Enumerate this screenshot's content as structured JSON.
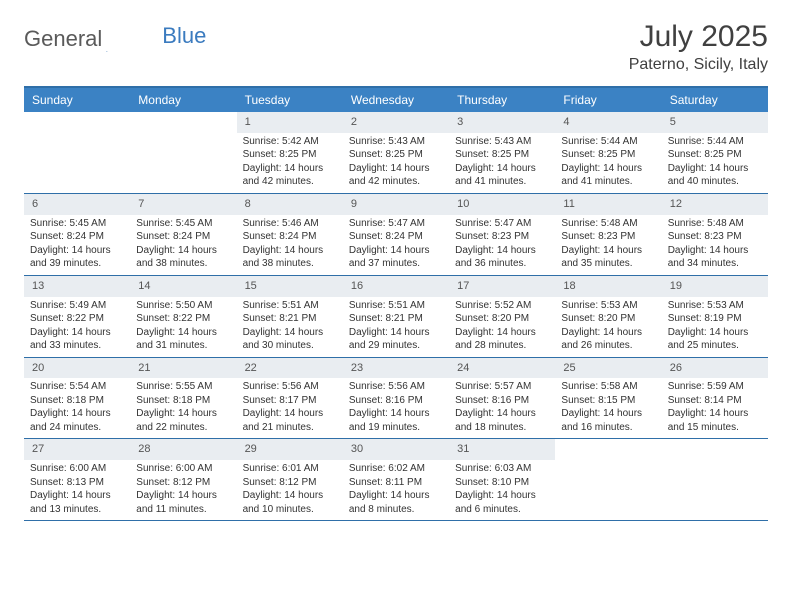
{
  "brand": {
    "part1": "General",
    "part2": "Blue"
  },
  "title": "July 2025",
  "location": "Paterno, Sicily, Italy",
  "colors": {
    "header_bg": "#3b82c4",
    "header_text": "#ffffff",
    "border": "#2f6fa8",
    "daynum_bg": "#e9edf1",
    "text": "#333333",
    "page_bg": "#ffffff"
  },
  "days_of_week": [
    "Sunday",
    "Monday",
    "Tuesday",
    "Wednesday",
    "Thursday",
    "Friday",
    "Saturday"
  ],
  "weeks": [
    [
      null,
      null,
      {
        "n": "1",
        "sr": "Sunrise: 5:42 AM",
        "ss": "Sunset: 8:25 PM",
        "dl": "Daylight: 14 hours and 42 minutes."
      },
      {
        "n": "2",
        "sr": "Sunrise: 5:43 AM",
        "ss": "Sunset: 8:25 PM",
        "dl": "Daylight: 14 hours and 42 minutes."
      },
      {
        "n": "3",
        "sr": "Sunrise: 5:43 AM",
        "ss": "Sunset: 8:25 PM",
        "dl": "Daylight: 14 hours and 41 minutes."
      },
      {
        "n": "4",
        "sr": "Sunrise: 5:44 AM",
        "ss": "Sunset: 8:25 PM",
        "dl": "Daylight: 14 hours and 41 minutes."
      },
      {
        "n": "5",
        "sr": "Sunrise: 5:44 AM",
        "ss": "Sunset: 8:25 PM",
        "dl": "Daylight: 14 hours and 40 minutes."
      }
    ],
    [
      {
        "n": "6",
        "sr": "Sunrise: 5:45 AM",
        "ss": "Sunset: 8:24 PM",
        "dl": "Daylight: 14 hours and 39 minutes."
      },
      {
        "n": "7",
        "sr": "Sunrise: 5:45 AM",
        "ss": "Sunset: 8:24 PM",
        "dl": "Daylight: 14 hours and 38 minutes."
      },
      {
        "n": "8",
        "sr": "Sunrise: 5:46 AM",
        "ss": "Sunset: 8:24 PM",
        "dl": "Daylight: 14 hours and 38 minutes."
      },
      {
        "n": "9",
        "sr": "Sunrise: 5:47 AM",
        "ss": "Sunset: 8:24 PM",
        "dl": "Daylight: 14 hours and 37 minutes."
      },
      {
        "n": "10",
        "sr": "Sunrise: 5:47 AM",
        "ss": "Sunset: 8:23 PM",
        "dl": "Daylight: 14 hours and 36 minutes."
      },
      {
        "n": "11",
        "sr": "Sunrise: 5:48 AM",
        "ss": "Sunset: 8:23 PM",
        "dl": "Daylight: 14 hours and 35 minutes."
      },
      {
        "n": "12",
        "sr": "Sunrise: 5:48 AM",
        "ss": "Sunset: 8:23 PM",
        "dl": "Daylight: 14 hours and 34 minutes."
      }
    ],
    [
      {
        "n": "13",
        "sr": "Sunrise: 5:49 AM",
        "ss": "Sunset: 8:22 PM",
        "dl": "Daylight: 14 hours and 33 minutes."
      },
      {
        "n": "14",
        "sr": "Sunrise: 5:50 AM",
        "ss": "Sunset: 8:22 PM",
        "dl": "Daylight: 14 hours and 31 minutes."
      },
      {
        "n": "15",
        "sr": "Sunrise: 5:51 AM",
        "ss": "Sunset: 8:21 PM",
        "dl": "Daylight: 14 hours and 30 minutes."
      },
      {
        "n": "16",
        "sr": "Sunrise: 5:51 AM",
        "ss": "Sunset: 8:21 PM",
        "dl": "Daylight: 14 hours and 29 minutes."
      },
      {
        "n": "17",
        "sr": "Sunrise: 5:52 AM",
        "ss": "Sunset: 8:20 PM",
        "dl": "Daylight: 14 hours and 28 minutes."
      },
      {
        "n": "18",
        "sr": "Sunrise: 5:53 AM",
        "ss": "Sunset: 8:20 PM",
        "dl": "Daylight: 14 hours and 26 minutes."
      },
      {
        "n": "19",
        "sr": "Sunrise: 5:53 AM",
        "ss": "Sunset: 8:19 PM",
        "dl": "Daylight: 14 hours and 25 minutes."
      }
    ],
    [
      {
        "n": "20",
        "sr": "Sunrise: 5:54 AM",
        "ss": "Sunset: 8:18 PM",
        "dl": "Daylight: 14 hours and 24 minutes."
      },
      {
        "n": "21",
        "sr": "Sunrise: 5:55 AM",
        "ss": "Sunset: 8:18 PM",
        "dl": "Daylight: 14 hours and 22 minutes."
      },
      {
        "n": "22",
        "sr": "Sunrise: 5:56 AM",
        "ss": "Sunset: 8:17 PM",
        "dl": "Daylight: 14 hours and 21 minutes."
      },
      {
        "n": "23",
        "sr": "Sunrise: 5:56 AM",
        "ss": "Sunset: 8:16 PM",
        "dl": "Daylight: 14 hours and 19 minutes."
      },
      {
        "n": "24",
        "sr": "Sunrise: 5:57 AM",
        "ss": "Sunset: 8:16 PM",
        "dl": "Daylight: 14 hours and 18 minutes."
      },
      {
        "n": "25",
        "sr": "Sunrise: 5:58 AM",
        "ss": "Sunset: 8:15 PM",
        "dl": "Daylight: 14 hours and 16 minutes."
      },
      {
        "n": "26",
        "sr": "Sunrise: 5:59 AM",
        "ss": "Sunset: 8:14 PM",
        "dl": "Daylight: 14 hours and 15 minutes."
      }
    ],
    [
      {
        "n": "27",
        "sr": "Sunrise: 6:00 AM",
        "ss": "Sunset: 8:13 PM",
        "dl": "Daylight: 14 hours and 13 minutes."
      },
      {
        "n": "28",
        "sr": "Sunrise: 6:00 AM",
        "ss": "Sunset: 8:12 PM",
        "dl": "Daylight: 14 hours and 11 minutes."
      },
      {
        "n": "29",
        "sr": "Sunrise: 6:01 AM",
        "ss": "Sunset: 8:12 PM",
        "dl": "Daylight: 14 hours and 10 minutes."
      },
      {
        "n": "30",
        "sr": "Sunrise: 6:02 AM",
        "ss": "Sunset: 8:11 PM",
        "dl": "Daylight: 14 hours and 8 minutes."
      },
      {
        "n": "31",
        "sr": "Sunrise: 6:03 AM",
        "ss": "Sunset: 8:10 PM",
        "dl": "Daylight: 14 hours and 6 minutes."
      },
      null,
      null
    ]
  ]
}
